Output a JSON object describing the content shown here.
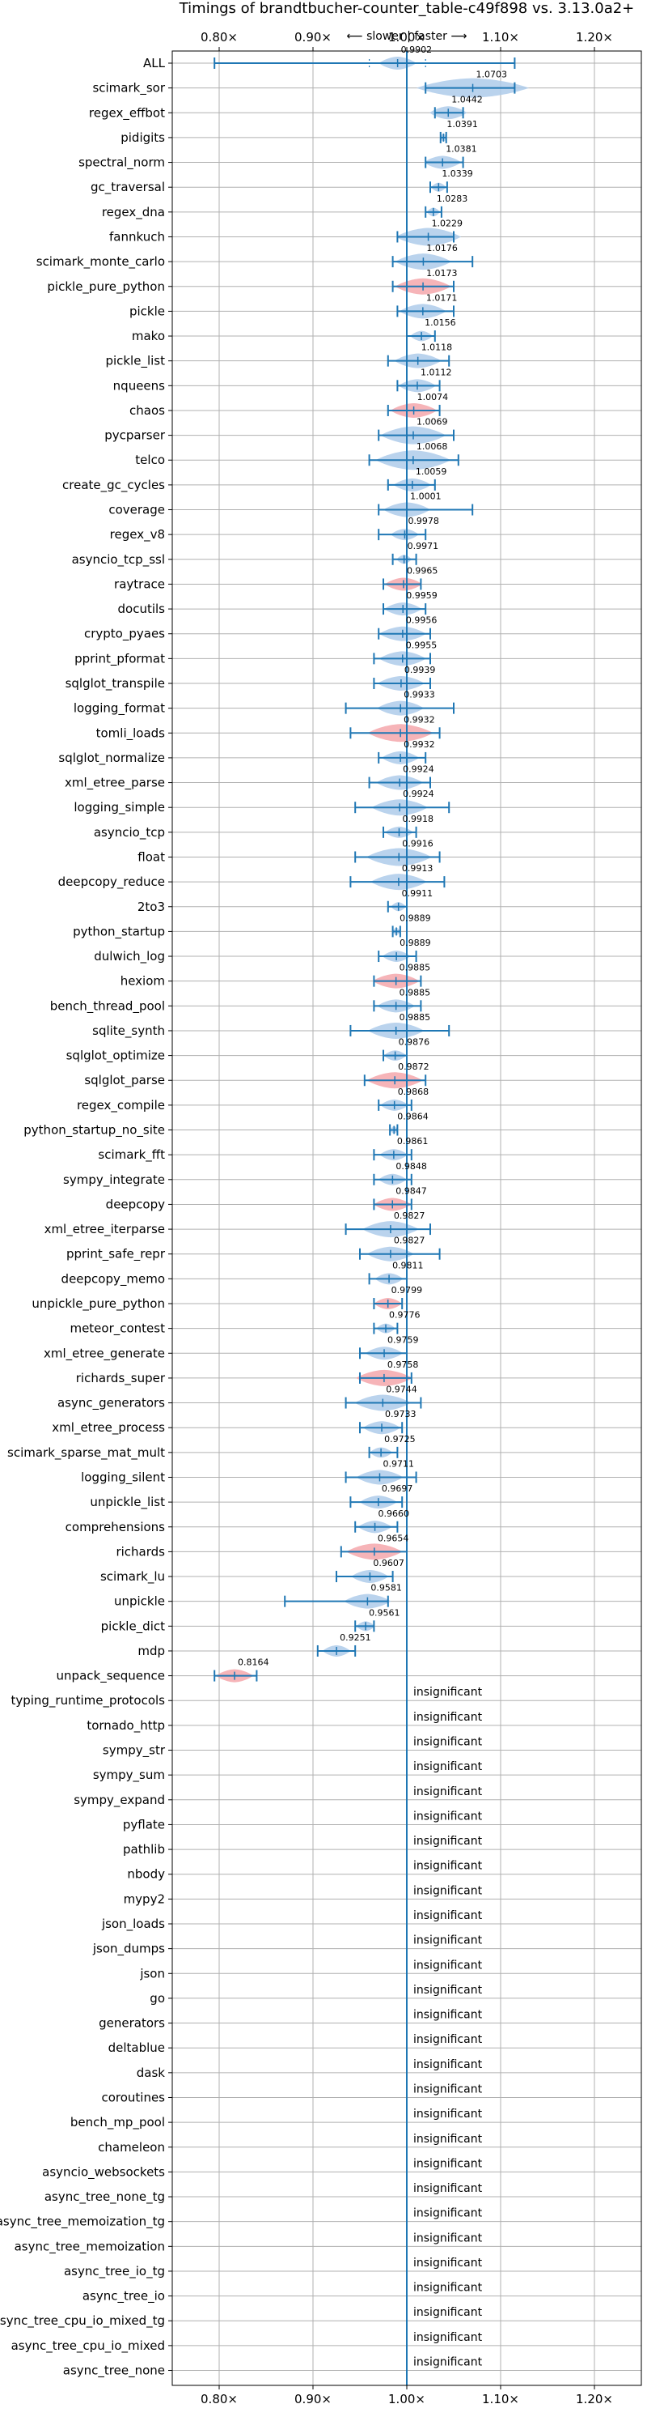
{
  "chart_data": {
    "type": "violin",
    "title": "Timings of brandtbucher-counter_table-c49f898 vs. 3.13.0a2+",
    "direction_label": "⟵ slower | faster ⟶",
    "xlim": [
      0.75,
      1.25
    ],
    "x_ticks": [
      0.8,
      0.9,
      1.0,
      1.1,
      1.2
    ],
    "x_tick_labels": [
      "0.80×",
      "0.90×",
      "1.00×",
      "1.10×",
      "1.20×"
    ],
    "reference": 1.0,
    "colors": {
      "faster": "#aecbea",
      "slower": "#f4a7ac",
      "line": "#1f77b4"
    },
    "insignificant_text": "insignificant",
    "benchmarks": [
      {
        "name": "ALL",
        "value": 0.9902,
        "min": 0.795,
        "max": 1.115,
        "q1": 0.96,
        "q3": 1.02,
        "width": 0.02,
        "status": "faster"
      },
      {
        "name": "scimark_sor",
        "value": 1.0703,
        "min": 1.02,
        "max": 1.115,
        "width": 0.06,
        "status": "faster"
      },
      {
        "name": "regex_effbot",
        "value": 1.0442,
        "min": 1.03,
        "max": 1.06,
        "width": 0.02,
        "status": "faster"
      },
      {
        "name": "pidigits",
        "value": 1.0391,
        "min": 1.036,
        "max": 1.042,
        "width": 0.004,
        "status": "faster"
      },
      {
        "name": "spectral_norm",
        "value": 1.0381,
        "min": 1.02,
        "max": 1.06,
        "width": 0.02,
        "status": "faster"
      },
      {
        "name": "gc_traversal",
        "value": 1.0339,
        "min": 1.025,
        "max": 1.043,
        "width": 0.008,
        "status": "faster"
      },
      {
        "name": "regex_dna",
        "value": 1.0283,
        "min": 1.02,
        "max": 1.037,
        "width": 0.007,
        "status": "faster"
      },
      {
        "name": "fannkuch",
        "value": 1.0229,
        "min": 0.99,
        "max": 1.05,
        "width": 0.035,
        "status": "faster"
      },
      {
        "name": "scimark_monte_carlo",
        "value": 1.0176,
        "min": 0.985,
        "max": 1.07,
        "width": 0.03,
        "status": "faster"
      },
      {
        "name": "pickle_pure_python",
        "value": 1.0173,
        "min": 0.985,
        "max": 1.05,
        "width": 0.03,
        "status": "slower"
      },
      {
        "name": "pickle",
        "value": 1.0171,
        "min": 0.99,
        "max": 1.05,
        "width": 0.025,
        "status": "faster"
      },
      {
        "name": "mako",
        "value": 1.0156,
        "min": 1.0,
        "max": 1.03,
        "width": 0.012,
        "status": "faster"
      },
      {
        "name": "pickle_list",
        "value": 1.0118,
        "min": 0.98,
        "max": 1.045,
        "width": 0.025,
        "status": "faster"
      },
      {
        "name": "nqueens",
        "value": 1.0112,
        "min": 0.99,
        "max": 1.035,
        "width": 0.02,
        "status": "faster"
      },
      {
        "name": "chaos",
        "value": 1.0074,
        "min": 0.98,
        "max": 1.035,
        "width": 0.025,
        "status": "slower"
      },
      {
        "name": "pycparser",
        "value": 1.0069,
        "min": 0.97,
        "max": 1.05,
        "width": 0.035,
        "status": "faster"
      },
      {
        "name": "telco",
        "value": 1.0068,
        "min": 0.96,
        "max": 1.055,
        "width": 0.04,
        "status": "faster"
      },
      {
        "name": "create_gc_cycles",
        "value": 1.0059,
        "min": 0.98,
        "max": 1.03,
        "width": 0.02,
        "status": "faster"
      },
      {
        "name": "coverage",
        "value": 1.0001,
        "min": 0.97,
        "max": 1.07,
        "width": 0.025,
        "status": "faster"
      },
      {
        "name": "regex_v8",
        "value": 0.9978,
        "min": 0.97,
        "max": 1.02,
        "width": 0.015,
        "status": "faster"
      },
      {
        "name": "asyncio_tcp_ssl",
        "value": 0.9971,
        "min": 0.985,
        "max": 1.01,
        "width": 0.008,
        "status": "faster"
      },
      {
        "name": "raytrace",
        "value": 0.9965,
        "min": 0.975,
        "max": 1.015,
        "width": 0.02,
        "status": "slower"
      },
      {
        "name": "docutils",
        "value": 0.9959,
        "min": 0.975,
        "max": 1.02,
        "width": 0.02,
        "status": "faster"
      },
      {
        "name": "crypto_pyaes",
        "value": 0.9956,
        "min": 0.97,
        "max": 1.025,
        "width": 0.025,
        "status": "faster"
      },
      {
        "name": "pprint_pformat",
        "value": 0.9955,
        "min": 0.965,
        "max": 1.025,
        "width": 0.025,
        "status": "faster"
      },
      {
        "name": "sqlglot_transpile",
        "value": 0.9939,
        "min": 0.965,
        "max": 1.025,
        "width": 0.025,
        "status": "faster"
      },
      {
        "name": "logging_format",
        "value": 0.9933,
        "min": 0.935,
        "max": 1.05,
        "width": 0.025,
        "status": "faster"
      },
      {
        "name": "tomli_loads",
        "value": 0.9932,
        "min": 0.94,
        "max": 1.035,
        "width": 0.035,
        "status": "slower"
      },
      {
        "name": "sqlglot_normalize",
        "value": 0.9932,
        "min": 0.97,
        "max": 1.02,
        "width": 0.02,
        "status": "faster"
      },
      {
        "name": "xml_etree_parse",
        "value": 0.9924,
        "min": 0.96,
        "max": 1.025,
        "width": 0.025,
        "status": "faster"
      },
      {
        "name": "logging_simple",
        "value": 0.9924,
        "min": 0.945,
        "max": 1.045,
        "width": 0.03,
        "status": "faster"
      },
      {
        "name": "asyncio_tcp",
        "value": 0.9918,
        "min": 0.975,
        "max": 1.01,
        "width": 0.015,
        "status": "faster"
      },
      {
        "name": "float",
        "value": 0.9916,
        "min": 0.945,
        "max": 1.035,
        "width": 0.035,
        "status": "faster"
      },
      {
        "name": "deepcopy_reduce",
        "value": 0.9913,
        "min": 0.94,
        "max": 1.04,
        "width": 0.03,
        "status": "faster"
      },
      {
        "name": "2to3",
        "value": 0.9911,
        "min": 0.98,
        "max": 1.0,
        "width": 0.008,
        "status": "faster"
      },
      {
        "name": "python_startup",
        "value": 0.9889,
        "min": 0.985,
        "max": 0.993,
        "width": 0.004,
        "status": "faster"
      },
      {
        "name": "dulwich_log",
        "value": 0.9889,
        "min": 0.97,
        "max": 1.01,
        "width": 0.015,
        "status": "faster"
      },
      {
        "name": "hexiom",
        "value": 0.9885,
        "min": 0.965,
        "max": 1.015,
        "width": 0.025,
        "status": "slower"
      },
      {
        "name": "bench_thread_pool",
        "value": 0.9885,
        "min": 0.965,
        "max": 1.015,
        "width": 0.02,
        "status": "faster"
      },
      {
        "name": "sqlite_synth",
        "value": 0.9885,
        "min": 0.94,
        "max": 1.045,
        "width": 0.03,
        "status": "faster"
      },
      {
        "name": "sqlglot_optimize",
        "value": 0.9876,
        "min": 0.975,
        "max": 1.0,
        "width": 0.012,
        "status": "faster"
      },
      {
        "name": "sqlglot_parse",
        "value": 0.9872,
        "min": 0.955,
        "max": 1.02,
        "width": 0.03,
        "status": "slower"
      },
      {
        "name": "regex_compile",
        "value": 0.9868,
        "min": 0.97,
        "max": 1.005,
        "width": 0.015,
        "status": "faster"
      },
      {
        "name": "python_startup_no_site",
        "value": 0.9864,
        "min": 0.982,
        "max": 0.99,
        "width": 0.004,
        "status": "faster"
      },
      {
        "name": "scimark_fft",
        "value": 0.9861,
        "min": 0.965,
        "max": 1.005,
        "width": 0.015,
        "status": "faster"
      },
      {
        "name": "sympy_integrate",
        "value": 0.9848,
        "min": 0.965,
        "max": 1.005,
        "width": 0.015,
        "status": "faster"
      },
      {
        "name": "deepcopy",
        "value": 0.9847,
        "min": 0.965,
        "max": 1.005,
        "width": 0.02,
        "status": "slower"
      },
      {
        "name": "xml_etree_iterparse",
        "value": 0.9827,
        "min": 0.935,
        "max": 1.025,
        "width": 0.03,
        "status": "faster"
      },
      {
        "name": "pprint_safe_repr",
        "value": 0.9827,
        "min": 0.95,
        "max": 1.035,
        "width": 0.025,
        "status": "faster"
      },
      {
        "name": "deepcopy_memo",
        "value": 0.9811,
        "min": 0.96,
        "max": 1.0,
        "width": 0.015,
        "status": "faster"
      },
      {
        "name": "unpickle_pure_python",
        "value": 0.9799,
        "min": 0.965,
        "max": 0.995,
        "width": 0.015,
        "status": "slower"
      },
      {
        "name": "meteor_contest",
        "value": 0.9776,
        "min": 0.965,
        "max": 0.99,
        "width": 0.01,
        "status": "faster"
      },
      {
        "name": "xml_etree_generate",
        "value": 0.9759,
        "min": 0.95,
        "max": 1.0,
        "width": 0.02,
        "status": "faster"
      },
      {
        "name": "richards_super",
        "value": 0.9758,
        "min": 0.95,
        "max": 1.005,
        "width": 0.03,
        "status": "slower"
      },
      {
        "name": "async_generators",
        "value": 0.9744,
        "min": 0.935,
        "max": 1.015,
        "width": 0.03,
        "status": "faster"
      },
      {
        "name": "xml_etree_process",
        "value": 0.9733,
        "min": 0.95,
        "max": 0.995,
        "width": 0.02,
        "status": "faster"
      },
      {
        "name": "scimark_sparse_mat_mult",
        "value": 0.9725,
        "min": 0.96,
        "max": 0.99,
        "width": 0.012,
        "status": "faster"
      },
      {
        "name": "logging_silent",
        "value": 0.9711,
        "min": 0.935,
        "max": 1.01,
        "width": 0.025,
        "status": "faster"
      },
      {
        "name": "unpickle_list",
        "value": 0.9697,
        "min": 0.94,
        "max": 0.995,
        "width": 0.02,
        "status": "faster"
      },
      {
        "name": "comprehensions",
        "value": 0.966,
        "min": 0.945,
        "max": 0.99,
        "width": 0.018,
        "status": "faster"
      },
      {
        "name": "richards",
        "value": 0.9654,
        "min": 0.93,
        "max": 1.0,
        "width": 0.03,
        "status": "slower"
      },
      {
        "name": "scimark_lu",
        "value": 0.9607,
        "min": 0.925,
        "max": 0.985,
        "width": 0.02,
        "status": "faster"
      },
      {
        "name": "unpickle",
        "value": 0.9581,
        "min": 0.87,
        "max": 0.98,
        "width": 0.025,
        "status": "faster"
      },
      {
        "name": "pickle_dict",
        "value": 0.9561,
        "min": 0.945,
        "max": 0.965,
        "width": 0.01,
        "status": "faster"
      },
      {
        "name": "mdp",
        "value": 0.9251,
        "min": 0.905,
        "max": 0.945,
        "width": 0.015,
        "status": "faster"
      },
      {
        "name": "unpack_sequence",
        "value": 0.8164,
        "min": 0.795,
        "max": 0.84,
        "width": 0.02,
        "status": "slower"
      },
      {
        "name": "typing_runtime_protocols",
        "status": "insignificant"
      },
      {
        "name": "tornado_http",
        "status": "insignificant"
      },
      {
        "name": "sympy_str",
        "status": "insignificant"
      },
      {
        "name": "sympy_sum",
        "status": "insignificant"
      },
      {
        "name": "sympy_expand",
        "status": "insignificant"
      },
      {
        "name": "pyflate",
        "status": "insignificant"
      },
      {
        "name": "pathlib",
        "status": "insignificant"
      },
      {
        "name": "nbody",
        "status": "insignificant"
      },
      {
        "name": "mypy2",
        "status": "insignificant"
      },
      {
        "name": "json_loads",
        "status": "insignificant"
      },
      {
        "name": "json_dumps",
        "status": "insignificant"
      },
      {
        "name": "json",
        "status": "insignificant"
      },
      {
        "name": "go",
        "status": "insignificant"
      },
      {
        "name": "generators",
        "status": "insignificant"
      },
      {
        "name": "deltablue",
        "status": "insignificant"
      },
      {
        "name": "dask",
        "status": "insignificant"
      },
      {
        "name": "coroutines",
        "status": "insignificant"
      },
      {
        "name": "bench_mp_pool",
        "status": "insignificant"
      },
      {
        "name": "chameleon",
        "status": "insignificant"
      },
      {
        "name": "asyncio_websockets",
        "status": "insignificant"
      },
      {
        "name": "async_tree_none_tg",
        "status": "insignificant"
      },
      {
        "name": "async_tree_memoization_tg",
        "status": "insignificant"
      },
      {
        "name": "async_tree_memoization",
        "status": "insignificant"
      },
      {
        "name": "async_tree_io_tg",
        "status": "insignificant"
      },
      {
        "name": "async_tree_io",
        "status": "insignificant"
      },
      {
        "name": "async_tree_cpu_io_mixed_tg",
        "status": "insignificant"
      },
      {
        "name": "async_tree_cpu_io_mixed",
        "status": "insignificant"
      },
      {
        "name": "async_tree_none",
        "status": "insignificant"
      }
    ]
  }
}
